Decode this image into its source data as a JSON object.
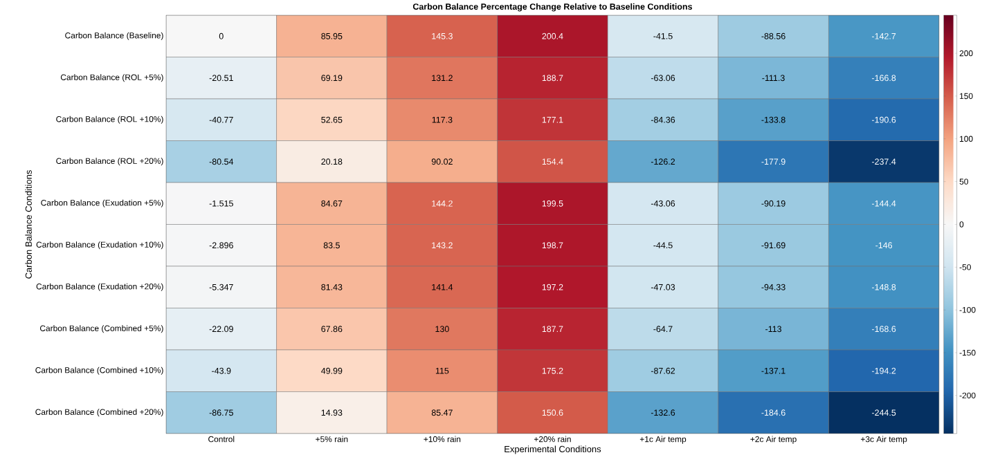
{
  "chart_data": {
    "type": "heatmap",
    "title": "Carbon Balance Percentage Change Relative to Baseline Conditions",
    "xlabel": "Experimental Conditions",
    "ylabel": "Carbon Balance Conditions",
    "categories": [
      "Control",
      "+5% rain",
      "+10% rain",
      "+20% rain",
      "+1c Air temp",
      "+2c Air temp",
      "+3c Air temp"
    ],
    "y_categories": [
      "Carbon Balance (Baseline)",
      "Carbon Balance (ROL +5%)",
      "Carbon Balance (ROL +10%)",
      "Carbon Balance (ROL +20%)",
      "Carbon Balance (Exudation +5%)",
      "Carbon Balance (Exudation +10%)",
      "Carbon Balance (Exudation +20%)",
      "Carbon Balance (Combined +5%)",
      "Carbon Balance (Combined +10%)",
      "Carbon Balance (Combined +20%)"
    ],
    "cells": [
      [
        0,
        85.95,
        145.3,
        200.4,
        -41.5,
        -88.56,
        -142.7
      ],
      [
        -20.51,
        69.19,
        131.2,
        188.7,
        -63.06,
        -111.3,
        -166.8
      ],
      [
        -40.77,
        52.65,
        117.3,
        177.1,
        -84.36,
        -133.8,
        -190.6
      ],
      [
        -80.54,
        20.18,
        90.02,
        154.4,
        -126.2,
        -177.9,
        -237.4
      ],
      [
        -1.515,
        84.67,
        144.2,
        199.5,
        -43.06,
        -90.19,
        -144.4
      ],
      [
        -2.896,
        83.5,
        143.2,
        198.7,
        -44.5,
        -91.69,
        -146
      ],
      [
        -5.347,
        81.43,
        141.4,
        197.2,
        -47.03,
        -94.33,
        -148.8
      ],
      [
        -22.09,
        67.86,
        130,
        187.7,
        -64.7,
        -113,
        -168.6
      ],
      [
        -43.9,
        49.99,
        115,
        175.2,
        -87.62,
        -137.1,
        -194.2
      ],
      [
        -86.75,
        14.93,
        85.47,
        150.6,
        -132.6,
        -184.6,
        -244.5
      ]
    ],
    "data_labels": true,
    "clim": [
      -244.5,
      244.5
    ],
    "cticks": [
      -200,
      -150,
      -100,
      -50,
      0,
      50,
      100,
      150,
      200
    ]
  }
}
